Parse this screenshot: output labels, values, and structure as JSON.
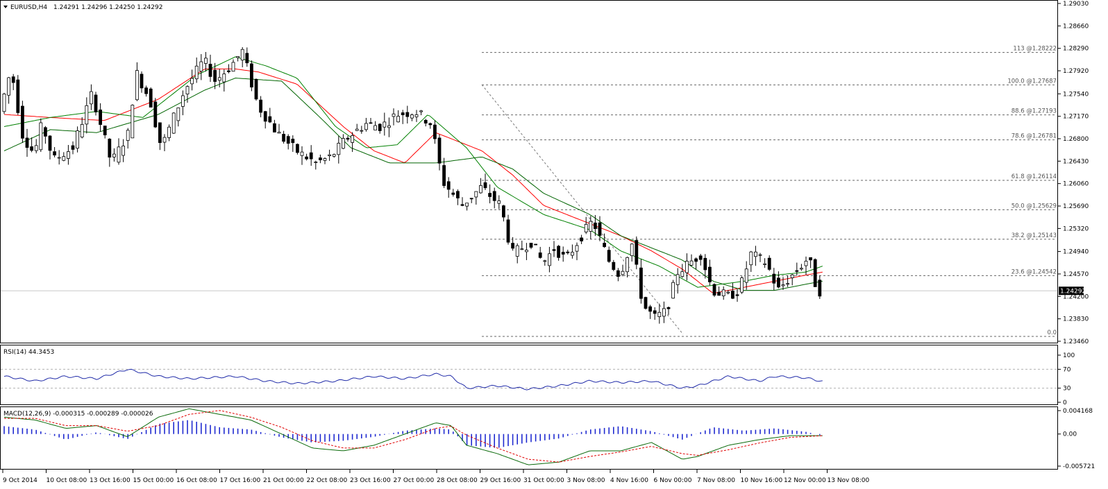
{
  "chart_data": {
    "type": "candlestick",
    "symbol_header": "EURUSD,H4",
    "ohlc_header": "1.24291 1.24296 1.24250 1.24292",
    "price_axis": {
      "range": [
        1.2346,
        1.2903
      ],
      "ticks": [
        "1.29030",
        "1.28660",
        "1.28290",
        "1.27920",
        "1.27540",
        "1.27170",
        "1.26800",
        "1.26430",
        "1.26060",
        "1.25690",
        "1.25320",
        "1.24940",
        "1.24570",
        "1.24200",
        "1.23830",
        "1.23460"
      ]
    },
    "current_price": {
      "value": 1.24292,
      "label": "1.24292"
    },
    "time_axis": [
      "9 Oct 2014",
      "10 Oct 08:00",
      "13 Oct 16:00",
      "15 Oct 00:00",
      "16 Oct 08:00",
      "17 Oct 16:00",
      "21 Oct 00:00",
      "22 Oct 08:00",
      "23 Oct 16:00",
      "27 Oct 00:00",
      "28 Oct 08:00",
      "29 Oct 16:00",
      "31 Oct 00:00",
      "3 Nov 08:00",
      "4 Nov 16:00",
      "6 Nov 00:00",
      "7 Nov 08:00",
      "10 Nov 16:00",
      "12 Nov 00:00",
      "13 Nov 08:00"
    ],
    "fibonacci": [
      {
        "level": "113",
        "price": 1.28222,
        "label": "113 @1.28222"
      },
      {
        "level": "100.0",
        "price": 1.27687,
        "label": "100.0 @1.27687"
      },
      {
        "level": "88.6",
        "price": 1.27193,
        "label": "88.6 @1.27193"
      },
      {
        "level": "78.6",
        "price": 1.26781,
        "label": "78.6 @1.26781"
      },
      {
        "level": "61.8",
        "price": 1.26114,
        "label": "61.8 @1.26114"
      },
      {
        "level": "50.0",
        "price": 1.25629,
        "label": "50.0 @1.25629"
      },
      {
        "level": "38.2",
        "price": 1.25143,
        "label": "38.2 @1.25143"
      },
      {
        "level": "23.6",
        "price": 1.24542,
        "label": "23.6 @1.24542"
      },
      {
        "level": "0.0",
        "price": 1.2354,
        "label": "0.0"
      }
    ],
    "candle_keypoints": [
      [
        0,
        1.2725
      ],
      [
        15,
        1.2795
      ],
      [
        30,
        1.2685
      ],
      [
        45,
        1.2655
      ],
      [
        55,
        1.2705
      ],
      [
        70,
        1.2645
      ],
      [
        95,
        1.2665
      ],
      [
        120,
        1.2755
      ],
      [
        145,
        1.264
      ],
      [
        170,
        1.2695
      ],
      [
        175,
        1.2795
      ],
      [
        195,
        1.2745
      ],
      [
        210,
        1.2665
      ],
      [
        240,
        1.276
      ],
      [
        265,
        1.281
      ],
      [
        280,
        1.2775
      ],
      [
        300,
        1.28
      ],
      [
        315,
        1.2825
      ],
      [
        335,
        1.2735
      ],
      [
        360,
        1.269
      ],
      [
        385,
        1.266
      ],
      [
        410,
        1.264
      ],
      [
        430,
        1.265
      ],
      [
        450,
        1.268
      ],
      [
        475,
        1.2705
      ],
      [
        495,
        1.27
      ],
      [
        515,
        1.272
      ],
      [
        540,
        1.2725
      ],
      [
        560,
        1.2705
      ],
      [
        575,
        1.261
      ],
      [
        600,
        1.257
      ],
      [
        625,
        1.26
      ],
      [
        650,
        1.257
      ],
      [
        665,
        1.249
      ],
      [
        690,
        1.251
      ],
      [
        705,
        1.2475
      ],
      [
        720,
        1.25
      ],
      [
        735,
        1.248
      ],
      [
        755,
        1.252
      ],
      [
        770,
        1.2545
      ],
      [
        790,
        1.248
      ],
      [
        805,
        1.2455
      ],
      [
        820,
        1.251
      ],
      [
        835,
        1.2405
      ],
      [
        850,
        1.2385
      ],
      [
        865,
        1.2395
      ],
      [
        880,
        1.246
      ],
      [
        895,
        1.2475
      ],
      [
        910,
        1.249
      ],
      [
        925,
        1.243
      ],
      [
        945,
        1.242
      ],
      [
        960,
        1.243
      ],
      [
        975,
        1.249
      ],
      [
        995,
        1.2475
      ],
      [
        1010,
        1.243
      ],
      [
        1025,
        1.245
      ],
      [
        1040,
        1.247
      ],
      [
        1050,
        1.2485
      ],
      [
        1058,
        1.2443
      ],
      [
        1062,
        1.2429
      ]
    ],
    "moving_averages": [
      {
        "color": "#ff0000",
        "keypoints": [
          [
            0,
            1.272
          ],
          [
            60,
            1.2715
          ],
          [
            130,
            1.271
          ],
          [
            200,
            1.2745
          ],
          [
            260,
            1.2795
          ],
          [
            300,
            1.2795
          ],
          [
            330,
            1.279
          ],
          [
            380,
            1.277
          ],
          [
            440,
            1.27
          ],
          [
            480,
            1.266
          ],
          [
            520,
            1.264
          ],
          [
            560,
            1.269
          ],
          [
            620,
            1.266
          ],
          [
            660,
            1.262
          ],
          [
            700,
            1.257
          ],
          [
            760,
            1.254
          ],
          [
            800,
            1.252
          ],
          [
            840,
            1.2495
          ],
          [
            880,
            1.2465
          ],
          [
            920,
            1.2425
          ],
          [
            980,
            1.244
          ],
          [
            1040,
            1.2455
          ],
          [
            1062,
            1.246
          ]
        ]
      },
      {
        "color": "#008000",
        "keypoints": [
          [
            0,
            1.27
          ],
          [
            60,
            1.2715
          ],
          [
            120,
            1.2725
          ],
          [
            180,
            1.2715
          ],
          [
            250,
            1.2785
          ],
          [
            300,
            1.2815
          ],
          [
            340,
            1.28
          ],
          [
            380,
            1.278
          ],
          [
            430,
            1.27
          ],
          [
            470,
            1.2665
          ],
          [
            510,
            1.267
          ],
          [
            550,
            1.272
          ],
          [
            600,
            1.2665
          ],
          [
            640,
            1.26
          ],
          [
            700,
            1.2555
          ],
          [
            760,
            1.253
          ],
          [
            800,
            1.2495
          ],
          [
            850,
            1.247
          ],
          [
            900,
            1.2435
          ],
          [
            960,
            1.2445
          ],
          [
            1000,
            1.2455
          ],
          [
            1040,
            1.246
          ],
          [
            1062,
            1.247
          ]
        ]
      },
      {
        "color": "#006400",
        "keypoints": [
          [
            0,
            1.266
          ],
          [
            60,
            1.2695
          ],
          [
            120,
            1.269
          ],
          [
            200,
            1.272
          ],
          [
            260,
            1.276
          ],
          [
            300,
            1.278
          ],
          [
            360,
            1.2775
          ],
          [
            410,
            1.2715
          ],
          [
            450,
            1.2665
          ],
          [
            500,
            1.264
          ],
          [
            560,
            1.264
          ],
          [
            620,
            1.265
          ],
          [
            660,
            1.263
          ],
          [
            700,
            1.259
          ],
          [
            760,
            1.2555
          ],
          [
            800,
            1.252
          ],
          [
            840,
            1.25
          ],
          [
            880,
            1.248
          ],
          [
            920,
            1.2445
          ],
          [
            960,
            1.243
          ],
          [
            1000,
            1.243
          ],
          [
            1040,
            1.244
          ],
          [
            1062,
            1.2445
          ]
        ]
      }
    ],
    "rsi": {
      "label": "RSI(14) 44.3453",
      "levels": [
        "100",
        "70",
        "30",
        "0"
      ],
      "range": [
        0,
        100
      ],
      "keypoints": [
        [
          0,
          55
        ],
        [
          40,
          45
        ],
        [
          80,
          55
        ],
        [
          120,
          50
        ],
        [
          160,
          70
        ],
        [
          200,
          55
        ],
        [
          240,
          50
        ],
        [
          300,
          55
        ],
        [
          340,
          45
        ],
        [
          380,
          40
        ],
        [
          430,
          45
        ],
        [
          480,
          55
        ],
        [
          520,
          50
        ],
        [
          560,
          60
        ],
        [
          580,
          55
        ],
        [
          600,
          30
        ],
        [
          640,
          35
        ],
        [
          680,
          28
        ],
        [
          720,
          35
        ],
        [
          760,
          45
        ],
        [
          800,
          42
        ],
        [
          840,
          45
        ],
        [
          880,
          30
        ],
        [
          900,
          35
        ],
        [
          940,
          55
        ],
        [
          980,
          45
        ],
        [
          1000,
          55
        ],
        [
          1040,
          52
        ],
        [
          1062,
          44
        ]
      ]
    },
    "macd": {
      "label": "MACD(12,26,9) -0.000315 -0.000289 -0.000026",
      "axis_ticks": [
        "0.004168",
        "0.00",
        "-0.005721"
      ],
      "range": [
        -0.005721,
        0.004168
      ],
      "histogram_keypoints": [
        [
          0,
          0.0014
        ],
        [
          40,
          0.0008
        ],
        [
          80,
          -0.001
        ],
        [
          120,
          0.0003
        ],
        [
          160,
          -0.0009
        ],
        [
          200,
          0.0018
        ],
        [
          240,
          0.0025
        ],
        [
          280,
          0.0012
        ],
        [
          320,
          0.0008
        ],
        [
          360,
          -0.0006
        ],
        [
          400,
          -0.0015
        ],
        [
          440,
          -0.0012
        ],
        [
          480,
          -0.0005
        ],
        [
          520,
          0.0006
        ],
        [
          560,
          0.001
        ],
        [
          580,
          0.0008
        ],
        [
          600,
          -0.002
        ],
        [
          640,
          -0.0025
        ],
        [
          680,
          -0.0015
        ],
        [
          720,
          -0.0008
        ],
        [
          760,
          0.0008
        ],
        [
          800,
          0.0014
        ],
        [
          840,
          0.0005
        ],
        [
          880,
          -0.001
        ],
        [
          920,
          0.0012
        ],
        [
          960,
          0.0006
        ],
        [
          1000,
          0.001
        ],
        [
          1040,
          0.0004
        ],
        [
          1062,
          -0.0003
        ]
      ],
      "macd_keypoints": [
        [
          0,
          0.003
        ],
        [
          40,
          0.0025
        ],
        [
          80,
          0.001
        ],
        [
          120,
          0.0015
        ],
        [
          160,
          -0.0005
        ],
        [
          200,
          0.003
        ],
        [
          240,
          0.0045
        ],
        [
          280,
          0.0035
        ],
        [
          320,
          0.0025
        ],
        [
          360,
          0.0
        ],
        [
          400,
          -0.0025
        ],
        [
          440,
          -0.003
        ],
        [
          480,
          -0.002
        ],
        [
          520,
          0.0
        ],
        [
          560,
          0.002
        ],
        [
          580,
          0.0015
        ],
        [
          600,
          -0.002
        ],
        [
          640,
          -0.0035
        ],
        [
          680,
          -0.0055
        ],
        [
          720,
          -0.005
        ],
        [
          760,
          -0.003
        ],
        [
          800,
          -0.003
        ],
        [
          840,
          -0.0015
        ],
        [
          880,
          -0.0045
        ],
        [
          900,
          -0.004
        ],
        [
          940,
          -0.002
        ],
        [
          980,
          -0.001
        ],
        [
          1020,
          -0.0003
        ],
        [
          1062,
          -0.0003
        ]
      ],
      "signal_keypoints": [
        [
          0,
          0.0028
        ],
        [
          40,
          0.0028
        ],
        [
          80,
          0.0015
        ],
        [
          120,
          0.0015
        ],
        [
          160,
          0.0005
        ],
        [
          200,
          0.0015
        ],
        [
          240,
          0.0035
        ],
        [
          280,
          0.0042
        ],
        [
          320,
          0.003
        ],
        [
          360,
          0.0012
        ],
        [
          400,
          -0.0012
        ],
        [
          440,
          -0.0025
        ],
        [
          480,
          -0.0025
        ],
        [
          520,
          -0.001
        ],
        [
          560,
          0.001
        ],
        [
          580,
          0.0014
        ],
        [
          600,
          -0.0002
        ],
        [
          640,
          -0.0025
        ],
        [
          680,
          -0.0045
        ],
        [
          720,
          -0.005
        ],
        [
          760,
          -0.004
        ],
        [
          800,
          -0.0032
        ],
        [
          840,
          -0.0022
        ],
        [
          880,
          -0.0035
        ],
        [
          900,
          -0.0038
        ],
        [
          940,
          -0.0028
        ],
        [
          980,
          -0.0016
        ],
        [
          1020,
          -0.0006
        ],
        [
          1062,
          -0.0003
        ]
      ]
    }
  }
}
